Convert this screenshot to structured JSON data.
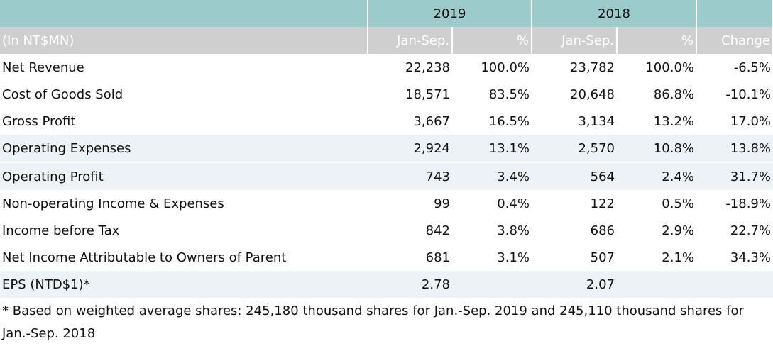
{
  "header": {
    "year_2019": "2019",
    "year_2018": "2018",
    "unit_label": "(In NT$MN)",
    "col_2019_period": "Jan-Sep.",
    "col_2019_pct": "%",
    "col_2018_period": "Jan-Sep.",
    "col_2018_pct": "%",
    "col_change": "Change"
  },
  "rows": [
    {
      "label": "Net Revenue",
      "v2019": "22,238",
      "p2019": "100.0%",
      "v2018": "23,782",
      "p2018": "100.0%",
      "change": "-6.5%"
    },
    {
      "label": "Cost of Goods Sold",
      "v2019": "18,571",
      "p2019": "83.5%",
      "v2018": "20,648",
      "p2018": "86.8%",
      "change": "-10.1%"
    },
    {
      "label": "Gross Profit",
      "v2019": "3,667",
      "p2019": "16.5%",
      "v2018": "3,134",
      "p2018": "13.2%",
      "change": "17.0%"
    },
    {
      "label": "Operating Expenses",
      "v2019": "2,924",
      "p2019": "13.1%",
      "v2018": "2,570",
      "p2018": "10.8%",
      "change": "13.8%"
    },
    {
      "label": "Operating Profit",
      "v2019": "743",
      "p2019": "3.4%",
      "v2018": "564",
      "p2018": "2.4%",
      "change": "31.7%"
    },
    {
      "label": "Non-operating Income & Expenses",
      "v2019": "99",
      "p2019": "0.4%",
      "v2018": "122",
      "p2018": "0.5%",
      "change": "-18.9%"
    },
    {
      "label": "Income before Tax",
      "v2019": "842",
      "p2019": "3.8%",
      "v2018": "686",
      "p2018": "2.9%",
      "change": "22.7%"
    },
    {
      "label": "Net Income Attributable to Owners of Parent",
      "v2019": "681",
      "p2019": "3.1%",
      "v2018": "507",
      "p2018": "2.1%",
      "change": "34.3%"
    },
    {
      "label": "EPS (NTD$1)*",
      "v2019": "2.78",
      "p2019": "",
      "v2018": "2.07",
      "p2018": "",
      "change": ""
    }
  ],
  "footnote": "* Based on weighted average shares: 245,180 thousand shares for Jan.-Sep. 2019 and 245,110 thousand shares for Jan.-Sep. 2018",
  "colors": {
    "year_header_bg": "#9ccbcc",
    "sub_header_bg": "#cfcfcf",
    "shaded_row_bg": "#edf2f6"
  }
}
